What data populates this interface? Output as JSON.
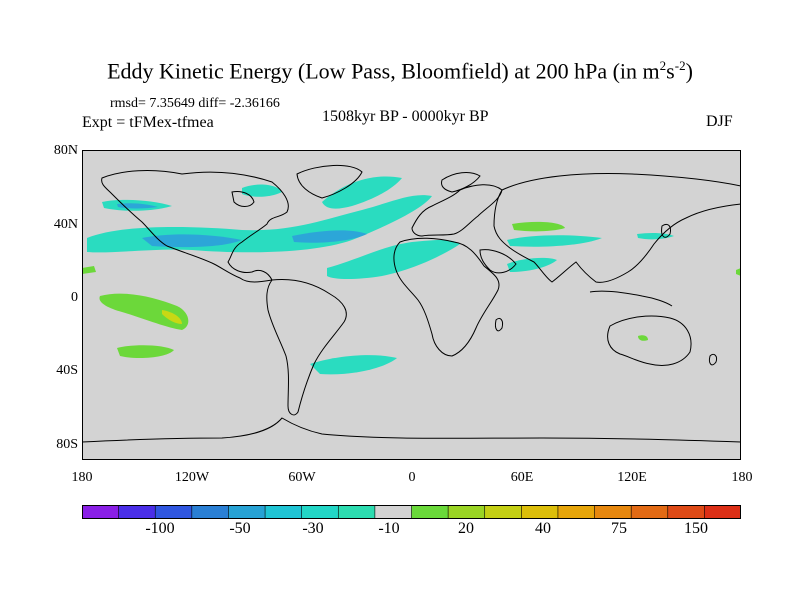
{
  "title": {
    "main": "Eddy Kinetic Energy (Low Pass, Bloomfield) at 200 hPa (in m",
    "sup1": "2",
    "mid": "s",
    "sup2": "-2",
    "end": ")"
  },
  "stats": "rmsd= 7.35649 diff= -2.36166",
  "expt": "Expt = tFMex-tfmea",
  "period": "1508kyr BP - 0000kyr BP",
  "season": "DJF",
  "y_ticks": [
    "80N",
    "40N",
    "0",
    "40S",
    "80S"
  ],
  "x_ticks": [
    "180",
    "120W",
    "60W",
    "0",
    "60E",
    "120E",
    "180"
  ],
  "colorbar": {
    "colors": [
      "#8a1fe6",
      "#4a2ee8",
      "#2f56e0",
      "#2a7fd4",
      "#27a2d4",
      "#1fc4d4",
      "#22d6c6",
      "#2cdcb0",
      "#d3d3d3",
      "#6ad93a",
      "#9ad424",
      "#c4cf14",
      "#dcbe0a",
      "#e6a50a",
      "#e6870e",
      "#e26a14",
      "#de4a16",
      "#dc2f16"
    ],
    "labels": [
      "-100",
      "-50",
      "-30",
      "-10",
      "20",
      "40",
      "75",
      "150"
    ]
  },
  "colors": {
    "land_ocean_bg": "#d3d3d3",
    "coast": "#000000",
    "cyan": "#2adcc0",
    "blue": "#2ca6d8",
    "green": "#6cd83a",
    "yellow": "#c8d814"
  }
}
